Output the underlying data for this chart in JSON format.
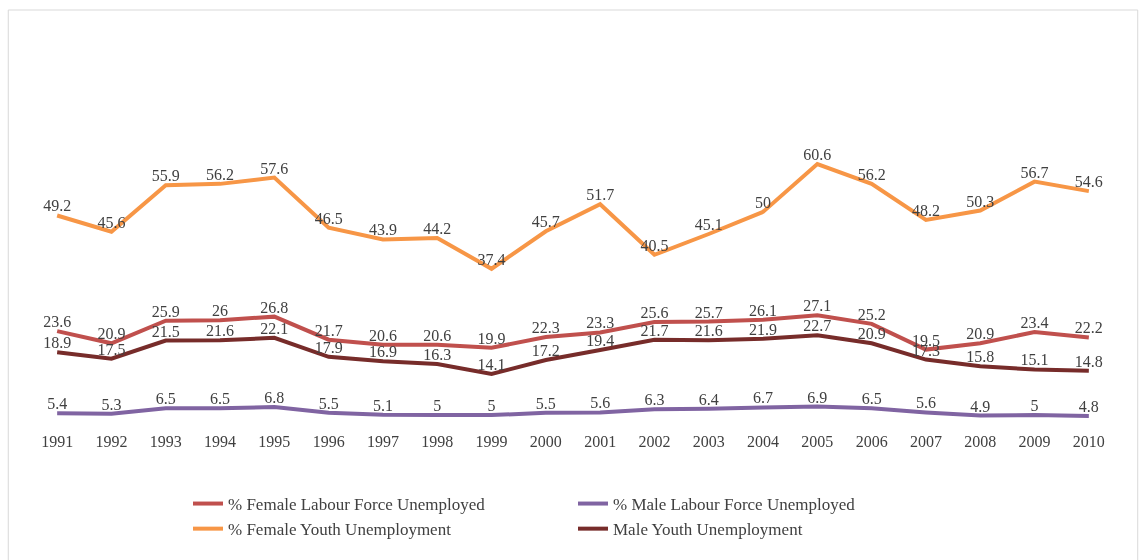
{
  "chart_data": {
    "type": "line",
    "categories": [
      "1991",
      "1992",
      "1993",
      "1994",
      "1995",
      "1996",
      "1997",
      "1998",
      "1999",
      "2000",
      "2001",
      "2002",
      "2003",
      "2004",
      "2005",
      "2006",
      "2007",
      "2008",
      "2009",
      "2010"
    ],
    "series": [
      {
        "name": "% Female Labour Force Unemployed",
        "color": "#c0504d",
        "values": [
          23.6,
          20.9,
          25.9,
          26,
          26.8,
          21.7,
          20.6,
          20.6,
          19.9,
          22.3,
          23.3,
          25.6,
          25.7,
          26.1,
          27.1,
          25.2,
          19.5,
          20.9,
          23.4,
          22.2
        ]
      },
      {
        "name": "% Male Labour Force Unemployed",
        "color": "#8064a2",
        "values": [
          5.4,
          5.3,
          6.5,
          6.5,
          6.8,
          5.5,
          5.1,
          5,
          5,
          5.5,
          5.6,
          6.3,
          6.4,
          6.7,
          6.9,
          6.5,
          5.6,
          4.9,
          5,
          4.8
        ]
      },
      {
        "name": "% Female Youth Unemployment",
        "color": "#f79646",
        "values": [
          49.2,
          45.6,
          55.9,
          56.2,
          57.6,
          46.5,
          43.9,
          44.2,
          37.4,
          45.7,
          51.7,
          40.5,
          45.1,
          50,
          60.6,
          56.2,
          48.2,
          50.3,
          56.7,
          54.6
        ]
      },
      {
        "name": "Male Youth Unemployment",
        "color": "#772c2a",
        "values": [
          18.9,
          17.5,
          21.5,
          21.6,
          22.1,
          17.9,
          16.9,
          16.3,
          14.1,
          17.2,
          19.4,
          21.7,
          21.6,
          21.9,
          22.7,
          20.9,
          17.3,
          15.8,
          15.1,
          14.8
        ]
      }
    ],
    "data_labels": true,
    "legend": "bottom",
    "marker": "none",
    "line_style": "solid",
    "tick_labels": "x"
  }
}
